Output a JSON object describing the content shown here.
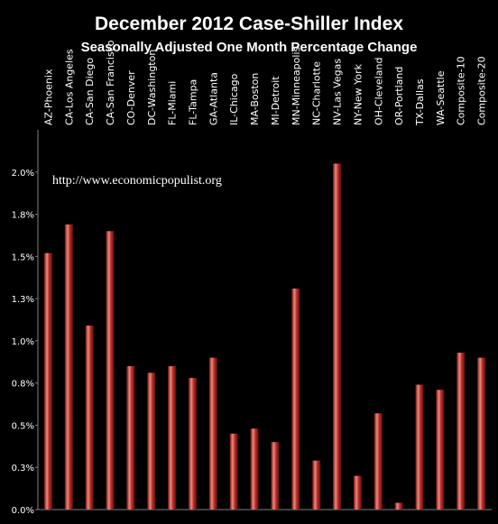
{
  "chart_data": {
    "type": "bar",
    "title": "December 2012 Case-Shiller Index",
    "subtitle": "Seasonally Adjusted One Month Percentage Change",
    "watermark": "http://www.economicpopulist.org",
    "categories": [
      "AZ-Phoenix",
      "CA-Los Angeles",
      "CA-San Diego",
      "CA-San Francisco",
      "CO-Denver",
      "DC-Washington",
      "FL-Miami",
      "FL-Tampa",
      "GA-Atlanta",
      "IL-Chicago",
      "MA-Boston",
      "MI-Detroit",
      "MN-Minneapolis",
      "NC-Charlotte",
      "NV-Las Vegas",
      "NY-New York",
      "OH-Cleveland",
      "OR-Portland",
      "TX-Dallas",
      "WA-Seattle",
      "Composite-10",
      "Composite-20"
    ],
    "values": [
      1.52,
      1.69,
      1.09,
      1.65,
      0.85,
      0.81,
      0.85,
      0.78,
      0.9,
      0.45,
      0.48,
      0.4,
      1.31,
      0.29,
      2.05,
      0.2,
      0.57,
      0.04,
      0.74,
      0.71,
      0.93,
      0.9
    ],
    "yticks": [
      "0.0%",
      "0.3%",
      "0.5%",
      "0.8%",
      "1.0%",
      "1.3%",
      "1.5%",
      "1.8%",
      "2.0%"
    ],
    "ytick_values": [
      0.0,
      0.25,
      0.5,
      0.75,
      1.0,
      1.25,
      1.5,
      1.75,
      2.0
    ],
    "ylim": [
      0,
      2.25
    ],
    "grid": false,
    "colors": {
      "background": "#000000",
      "bar": "#c0302a",
      "bar_highlight": "#f08a80",
      "bar_shadow": "#6a1410",
      "axis": "#808080",
      "text": "#ffffff"
    }
  }
}
